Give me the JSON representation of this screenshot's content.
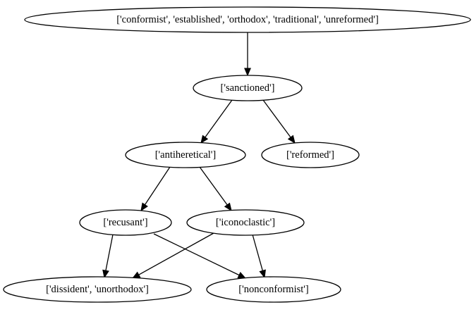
{
  "nodes": [
    {
      "id": "n1",
      "label": "['conformist', 'established', 'orthodox', 'traditional', 'unreformed']"
    },
    {
      "id": "n2",
      "label": "['sanctioned']"
    },
    {
      "id": "n3",
      "label": "['antiheretical']"
    },
    {
      "id": "n4",
      "label": "['reformed']"
    },
    {
      "id": "n5",
      "label": "['recusant']"
    },
    {
      "id": "n6",
      "label": "['iconoclastic']"
    },
    {
      "id": "n7",
      "label": "['dissident', 'unorthodox']"
    },
    {
      "id": "n8",
      "label": "['nonconformist']"
    }
  ],
  "edges": [
    {
      "from": "n1",
      "to": "n2"
    },
    {
      "from": "n2",
      "to": "n3"
    },
    {
      "from": "n2",
      "to": "n4"
    },
    {
      "from": "n3",
      "to": "n5"
    },
    {
      "from": "n3",
      "to": "n6"
    },
    {
      "from": "n5",
      "to": "n7"
    },
    {
      "from": "n5",
      "to": "n8"
    },
    {
      "from": "n6",
      "to": "n7"
    },
    {
      "from": "n6",
      "to": "n8"
    }
  ]
}
